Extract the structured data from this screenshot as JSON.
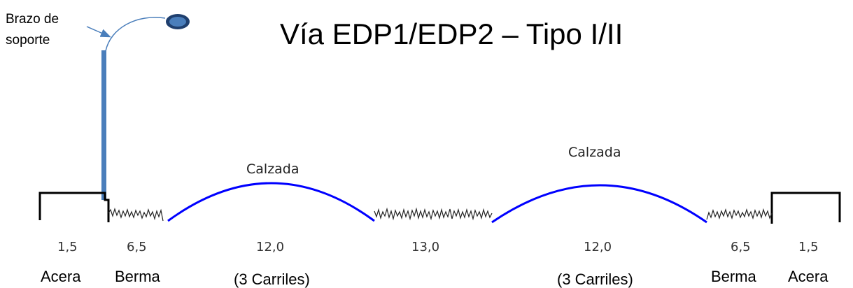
{
  "title": "Vía EDP1/EDP2 – Tipo I/II",
  "callout": {
    "line1": "Brazo de",
    "line2": "soporte"
  },
  "road_labels": [
    "Calzada",
    "Calzada"
  ],
  "dimensions": [
    "1,5",
    "6,5",
    "12,0",
    "13,0",
    "12,0",
    "6,5",
    "1,5"
  ],
  "zones": [
    "Acera",
    "Berma",
    "(3 Carriles)",
    "(3 Carriles)",
    "Berma",
    "Acera"
  ],
  "colors": {
    "pole": "#4A7EBB",
    "road": "#0000FF",
    "lamp": "#4A7EBB",
    "lamp_ring": "#1F3F6E"
  }
}
